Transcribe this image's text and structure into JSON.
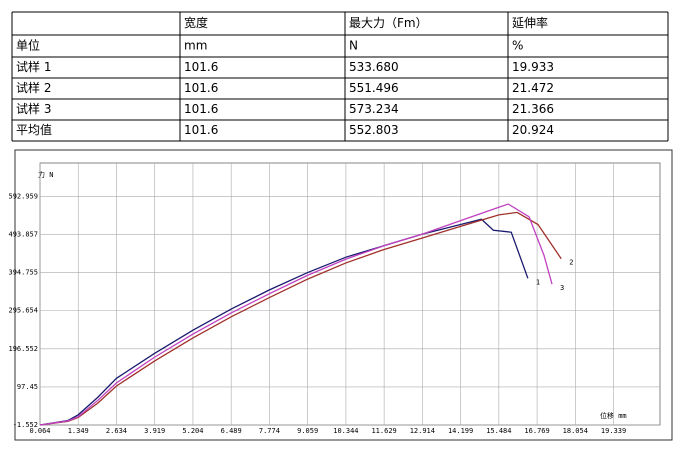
{
  "table": {
    "header": [
      "",
      "宽度",
      "最大力（Fm）",
      "延伸率"
    ],
    "rows": [
      [
        "单位",
        "mm",
        "N",
        "%"
      ],
      [
        "试样 1",
        "101.6",
        "533.680",
        "19.933"
      ],
      [
        "试样 2",
        "101.6",
        "551.496",
        "21.472"
      ],
      [
        "试样 3",
        "101.6",
        "573.234",
        "21.366"
      ],
      [
        "平均值",
        "101.6",
        "552.803",
        "20.924"
      ]
    ]
  },
  "chart_data": {
    "type": "line",
    "y_label": "力 N",
    "x_label": "位移 mm",
    "xlim": [
      0.064,
      20.9
    ],
    "ylim": [
      -1.552,
      680
    ],
    "xticks": [
      0.064,
      1.349,
      2.634,
      3.919,
      5.204,
      6.489,
      7.774,
      9.059,
      10.344,
      11.629,
      12.914,
      14.199,
      15.484,
      16.769,
      18.054,
      19.339
    ],
    "yticks": [
      -1.552,
      97.45,
      196.552,
      295.654,
      394.755,
      493.857,
      592.959
    ],
    "grid": true,
    "series": [
      {
        "name": "1",
        "color": "#1a1a6e",
        "x": [
          0.064,
          1.0,
          1.349,
          2.0,
          2.634,
          3.919,
          5.204,
          6.489,
          7.774,
          9.059,
          10.344,
          11.629,
          12.914,
          14.199,
          14.9,
          15.3,
          15.9,
          16.46
        ],
        "values": [
          -1.552,
          10,
          25,
          70,
          120,
          185,
          245,
          300,
          350,
          395,
          435,
          465,
          495,
          520,
          533.68,
          505,
          500,
          380
        ]
      },
      {
        "name": "2",
        "color": "#a0302a",
        "x": [
          0.064,
          1.0,
          1.349,
          2.0,
          2.634,
          3.919,
          5.204,
          6.489,
          7.774,
          9.059,
          10.344,
          11.629,
          12.914,
          14.199,
          15.484,
          16.1,
          16.8,
          17.58
        ],
        "values": [
          -1.552,
          8,
          18,
          55,
          100,
          165,
          225,
          280,
          330,
          378,
          420,
          455,
          485,
          515,
          545,
          551.496,
          520,
          431
        ]
      },
      {
        "name": "3",
        "color": "#c040c0",
        "x": [
          0.064,
          1.0,
          1.349,
          2.0,
          2.634,
          3.919,
          5.204,
          6.489,
          7.774,
          9.059,
          10.344,
          11.629,
          12.914,
          14.199,
          15.484,
          15.8,
          16.5,
          17.0,
          17.27
        ],
        "values": [
          -1.552,
          9,
          20,
          62,
          108,
          175,
          235,
          290,
          340,
          388,
          430,
          465,
          495,
          530,
          565,
          573.234,
          540,
          440,
          365
        ]
      }
    ]
  }
}
